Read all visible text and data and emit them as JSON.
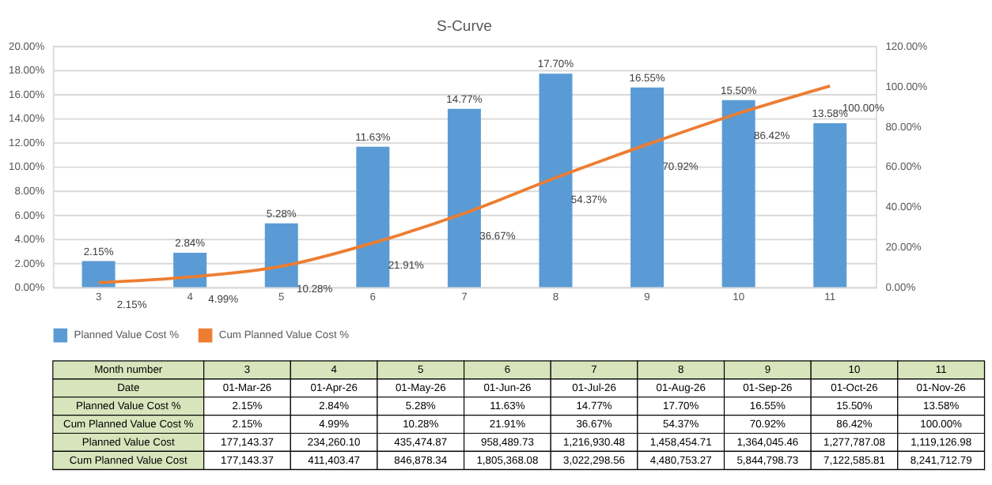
{
  "chart_data": {
    "type": "bar",
    "title": "S-Curve",
    "categories": [
      "3",
      "4",
      "5",
      "6",
      "7",
      "8",
      "9",
      "10",
      "11"
    ],
    "series": [
      {
        "name": "Planned Value Cost %",
        "color": "#5b9bd5",
        "values": [
          2.15,
          2.84,
          5.28,
          11.63,
          14.77,
          17.7,
          16.55,
          15.5,
          13.58
        ],
        "value_labels": [
          "2.15%",
          "2.84%",
          "5.28%",
          "11.63%",
          "14.77%",
          "17.70%",
          "16.55%",
          "15.50%",
          "13.58%"
        ]
      },
      {
        "name": "Cum Planned Value Cost %",
        "type": "line",
        "axis": "y2",
        "color": "#ed7d31",
        "values": [
          2.15,
          4.99,
          10.28,
          21.91,
          36.67,
          54.37,
          70.92,
          86.42,
          100.0
        ],
        "value_labels": [
          "2.15%",
          "4.99%",
          "10.28%",
          "21.91%",
          "36.67%",
          "54.37%",
          "70.92%",
          "86.42%",
          "100.00%"
        ]
      }
    ],
    "annotations": [
      "Month number",
      "Date",
      "01-Mar-26",
      "01-Apr-26",
      "01-May-26",
      "01-Jun-26",
      "01-Jul-26",
      "01-Aug-26",
      "01-Sep-26",
      "01-Oct-26",
      "01-Nov-26",
      "Planned Value Cost",
      "177,143.37",
      "234,260.10",
      "435,474.87",
      "958,489.73",
      "1,216,930.48",
      "1,458,454.71",
      "1,364,045.46",
      "1,277,787.08",
      "1,119,126.98",
      "Cum Planned Value Cost",
      "177,143.37",
      "411,403.47",
      "846,878.34",
      "1,805,368.08",
      "3,022,298.56",
      "4,480,753.27",
      "5,844,798.73",
      "7,122,585.81",
      "8,241,712.79"
    ],
    "ylim": [
      0,
      20
    ],
    "yticks": [
      {
        "value": 0,
        "label": "0.00%"
      },
      {
        "value": 2,
        "label": "2.00%"
      },
      {
        "value": 4,
        "label": "4.00%"
      },
      {
        "value": 6,
        "label": "6.00%"
      },
      {
        "value": 8,
        "label": "8.00%"
      },
      {
        "value": 10,
        "label": "10.00%"
      },
      {
        "value": 12,
        "label": "12.00%"
      },
      {
        "value": 14,
        "label": "14.00%"
      },
      {
        "value": 16,
        "label": "16.00%"
      },
      {
        "value": 18,
        "label": "18.00%"
      },
      {
        "value": 20,
        "label": "20.00%"
      }
    ],
    "y2lim": [
      0,
      120
    ],
    "y2ticks": [
      {
        "value": 0,
        "label": "0.00%"
      },
      {
        "value": 20,
        "label": "20.00%"
      },
      {
        "value": 40,
        "label": "40.00%"
      },
      {
        "value": 60,
        "label": "60.00%"
      },
      {
        "value": 80,
        "label": "80.00%"
      },
      {
        "value": 100,
        "label": "100.00%"
      },
      {
        "value": 120,
        "label": "120.00%"
      }
    ],
    "grid": "y",
    "legend": "bottom",
    "marker": "none",
    "line_style": "solid"
  }
}
